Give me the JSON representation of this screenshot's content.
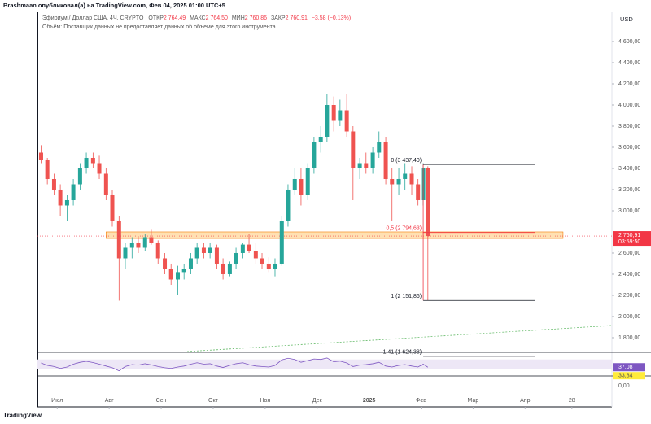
{
  "header": {
    "publisher": "Brashmaan опубликовал(а) на TradingView.com, Фев 04, 2025 01:00 UTC+5",
    "symbol": "Эфириум / Доллар США, 4Ч, CRYPTO",
    "ohlc": [
      {
        "label": "ОТКР",
        "value": "2 764,49"
      },
      {
        "label": "МАКС",
        "value": "2 764,50"
      },
      {
        "label": "МИН",
        "value": "2 760,86"
      },
      {
        "label": "ЗАКР",
        "value": "2 760,91"
      }
    ],
    "change": "−3,58 (−0,13%)",
    "volume_note": "Объём: Поставщик данных не предоставляет данных об объеме для этого инструмента.",
    "currency": "USD",
    "brand": "TradingView"
  },
  "chart_data": {
    "type": "candlestick",
    "x": [
      6.69,
      6.81,
      6.94,
      7.06,
      7.19,
      7.31,
      7.44,
      7.56,
      7.69,
      7.81,
      7.94,
      8.06,
      8.19,
      8.31,
      8.44,
      8.56,
      8.69,
      8.81,
      8.94,
      9.07,
      9.19,
      9.32,
      9.44,
      9.57,
      9.69,
      9.82,
      9.94,
      10.07,
      10.19,
      10.32,
      10.44,
      10.57,
      10.69,
      10.82,
      10.94,
      11.07,
      11.19,
      11.32,
      11.44,
      11.57,
      11.69,
      11.82,
      11.94,
      12.07,
      12.19,
      12.32,
      12.44,
      12.57,
      12.69,
      12.82,
      12.94,
      13.07,
      13.19,
      13.32,
      13.44,
      13.57,
      13.69,
      13.82,
      13.94,
      14.04,
      14.13
    ],
    "open": [
      3550,
      3480,
      3300,
      3200,
      3050,
      3100,
      3250,
      3400,
      3500,
      3450,
      3350,
      3150,
      2900,
      2550,
      2650,
      2700,
      2650,
      2750,
      2700,
      2550,
      2450,
      2350,
      2420,
      2450,
      2550,
      2650,
      2600,
      2650,
      2500,
      2400,
      2500,
      2600,
      2680,
      2620,
      2550,
      2500,
      2450,
      2500,
      2900,
      3200,
      3300,
      3150,
      3400,
      3650,
      3700,
      4000,
      3850,
      3950,
      3750,
      3400,
      3450,
      3400,
      3550,
      3650,
      3300,
      3250,
      3300,
      3350,
      3250,
      3100,
      3400
    ],
    "high": [
      3620,
      3500,
      3350,
      3250,
      3150,
      3300,
      3450,
      3550,
      3550,
      3520,
      3400,
      3200,
      2950,
      2700,
      2750,
      2760,
      2780,
      2820,
      2720,
      2600,
      2500,
      2480,
      2500,
      2600,
      2700,
      2700,
      2700,
      2680,
      2550,
      2520,
      2650,
      2700,
      2780,
      2700,
      2600,
      2560,
      2550,
      2950,
      3250,
      3400,
      3400,
      3450,
      3700,
      3800,
      4100,
      4080,
      4050,
      4100,
      3800,
      3500,
      3550,
      3600,
      3750,
      3700,
      3400,
      3400,
      3450,
      3420,
      3300,
      3450,
      3420
    ],
    "low": [
      3450,
      3250,
      3150,
      2950,
      2900,
      3050,
      3200,
      3350,
      3400,
      3300,
      3100,
      2850,
      2150,
      2450,
      2550,
      2600,
      2620,
      2680,
      2500,
      2400,
      2300,
      2200,
      2350,
      2400,
      2500,
      2550,
      2550,
      2450,
      2350,
      2380,
      2450,
      2550,
      2600,
      2500,
      2450,
      2420,
      2380,
      2480,
      2850,
      3150,
      3050,
      3100,
      3350,
      3550,
      3650,
      3750,
      3800,
      3700,
      3100,
      3300,
      3350,
      3350,
      3500,
      3250,
      2900,
      3150,
      3200,
      3150,
      3050,
      3050,
      2150
    ],
    "close": [
      3480,
      3300,
      3200,
      3050,
      3100,
      3250,
      3400,
      3500,
      3450,
      3350,
      3150,
      2900,
      2550,
      2650,
      2700,
      2650,
      2750,
      2700,
      2550,
      2450,
      2350,
      2420,
      2450,
      2550,
      2650,
      2600,
      2650,
      2500,
      2400,
      2500,
      2600,
      2680,
      2620,
      2550,
      2500,
      2450,
      2500,
      2900,
      3200,
      3300,
      3150,
      3400,
      3650,
      3700,
      4000,
      3850,
      3950,
      3750,
      3400,
      3450,
      3400,
      3550,
      3650,
      3300,
      3250,
      3300,
      3350,
      3250,
      3100,
      3400,
      2760.91
    ],
    "up_color": "#26a69a",
    "down_color": "#ef5350",
    "xlim": [
      6.62,
      17.67
    ],
    "xticks": [
      {
        "value": 7,
        "label": "Июл"
      },
      {
        "value": 8,
        "label": "Авг"
      },
      {
        "value": 9,
        "label": "Сен"
      },
      {
        "value": 10,
        "label": "Окт"
      },
      {
        "value": 11,
        "label": "Ноя"
      },
      {
        "value": 12,
        "label": "Дек"
      },
      {
        "value": 13,
        "label": "2025"
      },
      {
        "value": 14,
        "label": "Фев"
      },
      {
        "value": 15,
        "label": "Мар"
      },
      {
        "value": 16,
        "label": "Апр"
      },
      {
        "value": 16.9,
        "label": "28"
      }
    ],
    "ylim": [
      1669,
      4877
    ],
    "yticks": [
      {
        "value": 4600,
        "label": "4 600,00"
      },
      {
        "value": 4400,
        "label": "4 400,00"
      },
      {
        "value": 4200,
        "label": "4 200,00"
      },
      {
        "value": 4000,
        "label": "4 000,00"
      },
      {
        "value": 3800,
        "label": "3 800,00"
      },
      {
        "value": 3600,
        "label": "3 600,00"
      },
      {
        "value": 3400,
        "label": "3 400,00"
      },
      {
        "value": 3200,
        "label": "3 200,00"
      },
      {
        "value": 3000,
        "label": "3 000,00"
      },
      {
        "value": 2600,
        "label": "2 600,00"
      },
      {
        "value": 2400,
        "label": "2 400,00"
      },
      {
        "value": 2200,
        "label": "2 200,00"
      },
      {
        "value": 2000,
        "label": "2 000,00"
      },
      {
        "value": 1800,
        "label": "1 800,00"
      }
    ],
    "last_price": {
      "value": 2760.91,
      "label": "2 760,91",
      "countdown": "03:59:50",
      "color": "#f23645"
    },
    "zone": {
      "y": [
        2738,
        2800
      ],
      "x": [
        7.94,
        16.73
      ],
      "color": "#ffe0b2"
    },
    "fib": {
      "x": [
        14.04,
        16.19
      ],
      "levels": [
        {
          "value": 3437.4,
          "label": "0 (3 437,40)",
          "color": "#131722"
        },
        {
          "value": 2794.63,
          "label": "0,5 (2 794,63)",
          "color": "#f23645"
        },
        {
          "value": 2151.86,
          "label": "1 (2 151,86)",
          "color": "#131722"
        },
        {
          "value": 1624.38,
          "label": "1,41 (1 624,38)",
          "color": "#131722"
        }
      ]
    },
    "rsi": {
      "values": [
        55,
        45,
        40,
        32,
        38,
        50,
        58,
        62,
        57,
        50,
        42,
        35,
        22,
        40,
        48,
        46,
        52,
        47,
        40,
        35,
        32,
        38,
        42,
        50,
        56,
        50,
        52,
        42,
        36,
        45,
        52,
        56,
        48,
        42,
        40,
        38,
        45,
        68,
        75,
        70,
        58,
        65,
        72,
        70,
        76,
        60,
        63,
        55,
        40,
        46,
        48,
        52,
        58,
        42,
        38,
        45,
        48,
        42,
        38,
        50,
        37.08
      ],
      "ylim": [
        0,
        100
      ],
      "band": [
        30,
        70
      ],
      "color": "#7e57c2",
      "last": {
        "value": 37.08,
        "label": "37,08"
      },
      "ma_last": {
        "value": 33.84,
        "label": "33,84"
      }
    },
    "lower_axis_label": "0,00"
  }
}
